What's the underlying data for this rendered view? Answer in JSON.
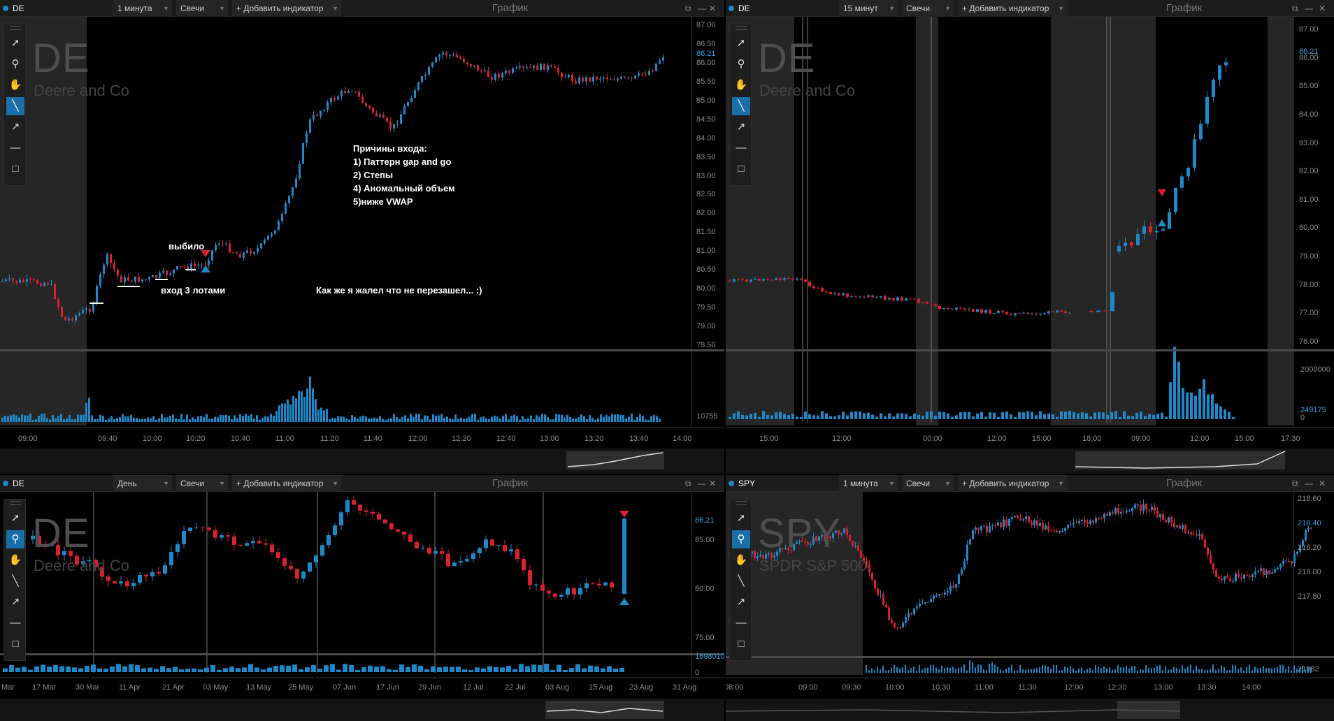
{
  "colors": {
    "up": "#1e88c8",
    "down": "#d9212c",
    "accent": "#1e88c8",
    "session_shade": "#2b2b2b",
    "background": "#000000"
  },
  "toolbar_common": {
    "chart_type": "Свечи",
    "add_indicator": "+ Добавить индикатор",
    "window_title": "График"
  },
  "tools": [
    "cursor-icon",
    "zoom-icon",
    "hand-icon",
    "trend-line-icon",
    "arrow-icon",
    "horizontal-line-icon",
    "rectangle-icon"
  ],
  "window_icons": [
    "pin-icon",
    "minimize-icon",
    "maximize-icon",
    "close-icon"
  ],
  "panels": [
    {
      "symbol": "DE",
      "timeframe": "1 минута",
      "watermark_symbol": "DE",
      "watermark_name": "Deere and Co",
      "price_ticks": [
        "87.00",
        "86.50",
        "86.00",
        "85.50",
        "85.00",
        "84.50",
        "84.00",
        "83.50",
        "83.00",
        "82.50",
        "82.00",
        "81.50",
        "81.00",
        "80.50",
        "80.00",
        "79.50",
        "79.00",
        "78.50"
      ],
      "last_price": "86.21",
      "volume_label": "10755",
      "time_ticks": [
        "09:00",
        "09:40",
        "10:00",
        "10:20",
        "10:40",
        "11:00",
        "11:20",
        "11:40",
        "12:00",
        "12:20",
        "12:40",
        "13:00",
        "13:20",
        "13:40",
        "14:00"
      ],
      "annotations": {
        "vybilo": "выбило",
        "entry": "вход 3 лотами",
        "reasons": [
          "Причины входа:",
          "1) Паттерн gap and go",
          "2) Степы",
          "4) Аномальный объем",
          "5)ниже VWAP"
        ],
        "regret": "Как же я жалел что не перезашел... :)"
      }
    },
    {
      "symbol": "DE",
      "timeframe": "15 минут",
      "watermark_symbol": "DE",
      "watermark_name": "Deere and Co",
      "price_ticks": [
        "87.00",
        "86.00",
        "85.00",
        "84.00",
        "83.00",
        "82.00",
        "81.00",
        "80.00",
        "79.00",
        "78.00",
        "77.00",
        "76.00"
      ],
      "last_price": "86.21",
      "volume_ticks": [
        "2000000",
        "249175",
        "0"
      ],
      "time_ticks": [
        "15:00",
        "12:00",
        "00:00",
        "12:00",
        "15:00",
        "18:00",
        "09:00",
        "12:00",
        "15:00",
        "17:30"
      ]
    },
    {
      "symbol": "DE",
      "timeframe": "День",
      "watermark_symbol": "DE",
      "watermark_name": "Deere and Co",
      "price_ticks": [
        "85.00",
        "80.00",
        "75.00"
      ],
      "last_price": "86.21",
      "volume_ticks": [
        "1698010",
        "0"
      ],
      "time_ticks": [
        "Mar",
        "17 Mar",
        "30 Mar",
        "11 Apr",
        "21 Apr",
        "03 May",
        "13 May",
        "25 May",
        "07 Jun",
        "17 Jun",
        "29 Jun",
        "12 Jul",
        "22 Jul",
        "03 Aug",
        "15 Aug",
        "23 Aug",
        "31 Aug"
      ]
    },
    {
      "symbol": "SPY",
      "timeframe": "1 минута",
      "watermark_symbol": "SPY",
      "watermark_name": "SPDR S&P 500",
      "price_ticks": [
        "218.60",
        "218.40",
        "218.20",
        "218.00",
        "217.80"
      ],
      "last_price": "218.40",
      "volume_label": "21882",
      "time_ticks": [
        "08:00",
        "09:00",
        "09:30",
        "10:00",
        "10:30",
        "11:00",
        "11:30",
        "12:00",
        "12:30",
        "13:00",
        "13:30",
        "14:00"
      ]
    }
  ]
}
